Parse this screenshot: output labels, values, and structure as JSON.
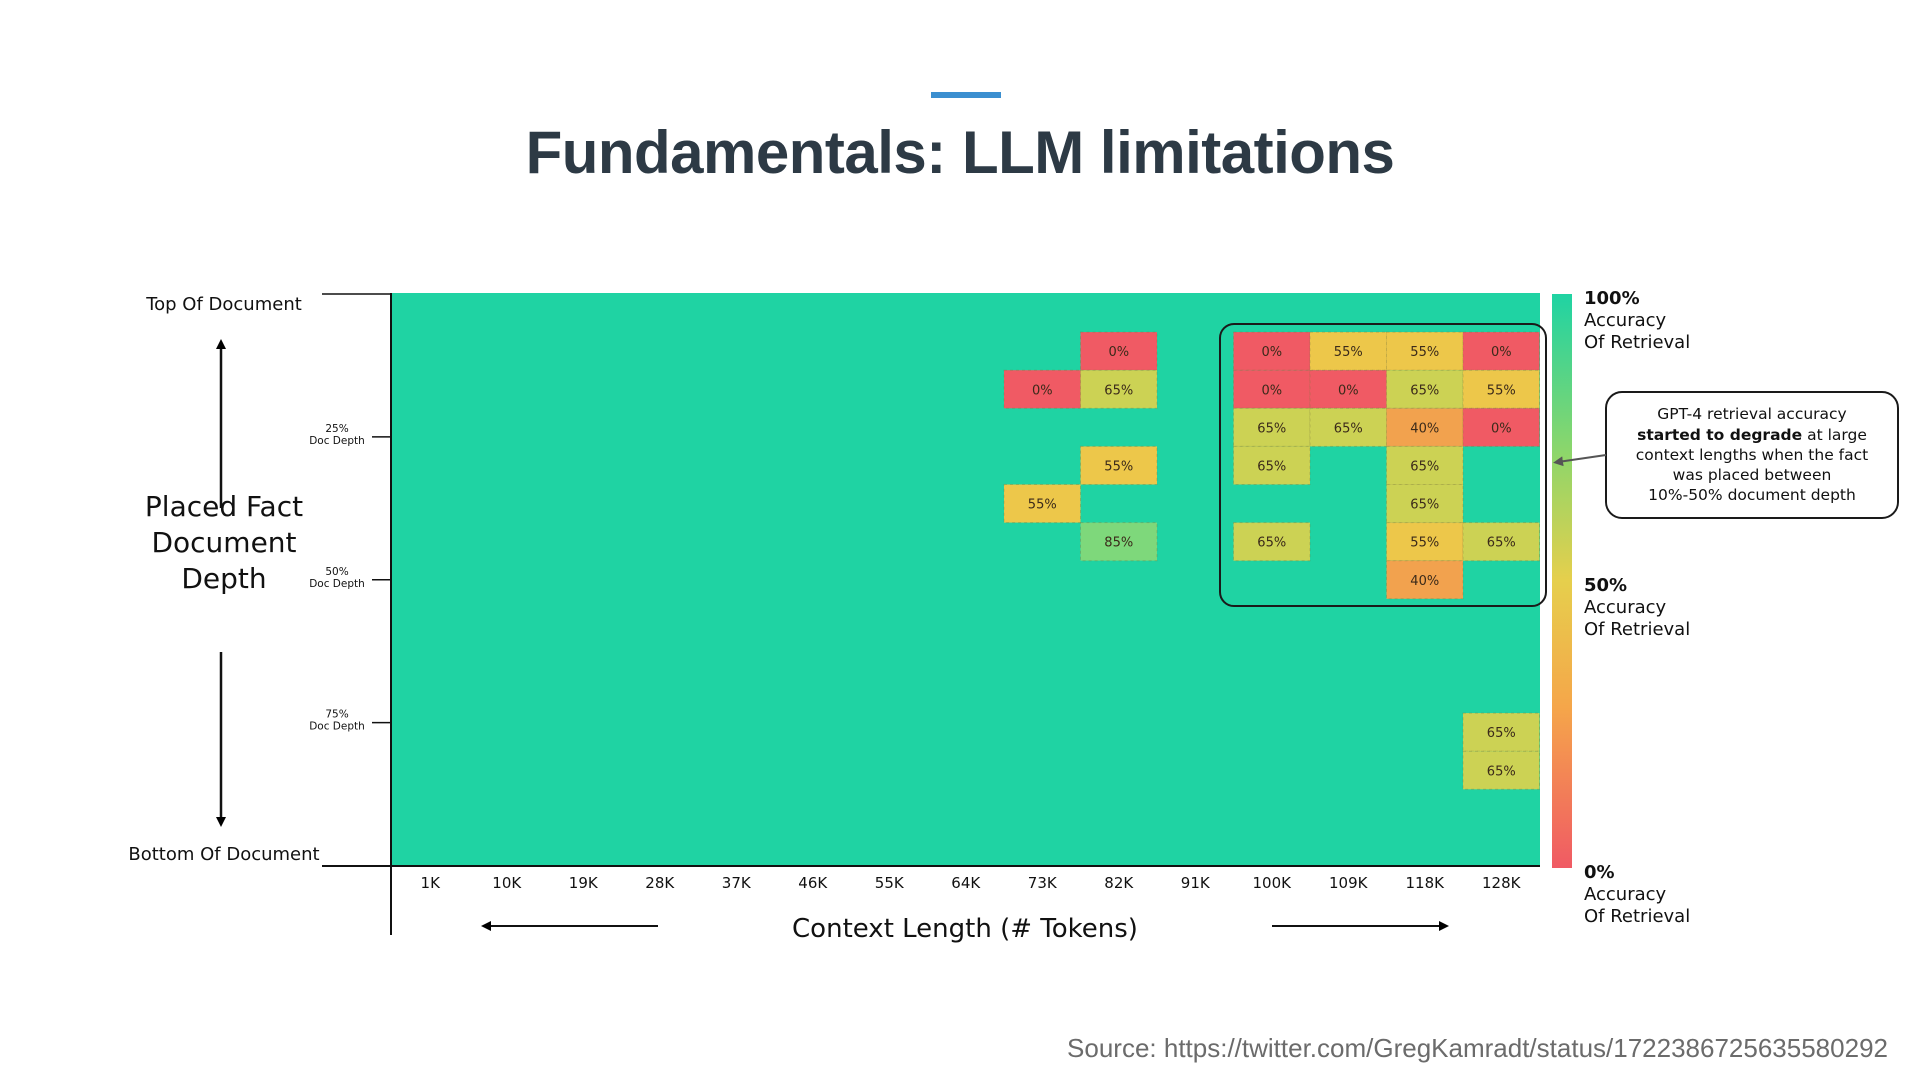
{
  "slide": {
    "title": "Fundamentals: LLM limitations",
    "source": "Source: https://twitter.com/GregKamradt/status/1722386725635580292"
  },
  "colors": {
    "accent": "#3b8fd0",
    "title": "#2d3a45",
    "heat_full": "#1fd3a3",
    "heat_zero": "#f05a64",
    "heat_mid": "#f2c04a"
  },
  "chart_data": {
    "type": "heatmap",
    "title": "",
    "xlabel": "Context Length (# Tokens)",
    "ylabel": "Placed Fact Document Depth",
    "x": [
      "1K",
      "10K",
      "19K",
      "28K",
      "37K",
      "46K",
      "55K",
      "64K",
      "73K",
      "82K",
      "91K",
      "100K",
      "109K",
      "118K",
      "128K"
    ],
    "y_rows": 15,
    "y_top_label": "Top Of Document",
    "y_bottom_label": "Bottom Of Document",
    "y_ticks": [
      {
        "label": "25% Doc Depth",
        "depth": 25
      },
      {
        "label": "50% Doc Depth",
        "depth": 50
      },
      {
        "label": "75% Doc Depth",
        "depth": 75
      }
    ],
    "default_value": 100,
    "cells": [
      {
        "row": 1,
        "col": "82K",
        "value": 0,
        "label": "0%"
      },
      {
        "row": 1,
        "col": "100K",
        "value": 0,
        "label": "0%"
      },
      {
        "row": 1,
        "col": "109K",
        "value": 55,
        "label": "55%"
      },
      {
        "row": 1,
        "col": "118K",
        "value": 55,
        "label": "55%"
      },
      {
        "row": 1,
        "col": "128K",
        "value": 0,
        "label": "0%"
      },
      {
        "row": 2,
        "col": "73K",
        "value": 0,
        "label": "0%"
      },
      {
        "row": 2,
        "col": "82K",
        "value": 65,
        "label": "65%"
      },
      {
        "row": 2,
        "col": "100K",
        "value": 0,
        "label": "0%"
      },
      {
        "row": 2,
        "col": "109K",
        "value": 0,
        "label": "0%"
      },
      {
        "row": 2,
        "col": "118K",
        "value": 65,
        "label": "65%"
      },
      {
        "row": 2,
        "col": "128K",
        "value": 55,
        "label": "55%"
      },
      {
        "row": 3,
        "col": "100K",
        "value": 65,
        "label": "65%"
      },
      {
        "row": 3,
        "col": "109K",
        "value": 65,
        "label": "65%"
      },
      {
        "row": 3,
        "col": "118K",
        "value": 40,
        "label": "40%"
      },
      {
        "row": 3,
        "col": "128K",
        "value": 0,
        "label": "0%"
      },
      {
        "row": 4,
        "col": "82K",
        "value": 55,
        "label": "55%"
      },
      {
        "row": 4,
        "col": "100K",
        "value": 65,
        "label": "65%"
      },
      {
        "row": 4,
        "col": "118K",
        "value": 65,
        "label": "65%"
      },
      {
        "row": 5,
        "col": "73K",
        "value": 55,
        "label": "55%"
      },
      {
        "row": 5,
        "col": "118K",
        "value": 65,
        "label": "65%"
      },
      {
        "row": 6,
        "col": "82K",
        "value": 85,
        "label": "85%"
      },
      {
        "row": 6,
        "col": "100K",
        "value": 65,
        "label": "65%"
      },
      {
        "row": 6,
        "col": "118K",
        "value": 55,
        "label": "55%"
      },
      {
        "row": 6,
        "col": "128K",
        "value": 65,
        "label": "65%"
      },
      {
        "row": 7,
        "col": "118K",
        "value": 40,
        "label": "40%"
      },
      {
        "row": 11,
        "col": "128K",
        "value": 65,
        "label": "65%"
      },
      {
        "row": 12,
        "col": "128K",
        "value": 65,
        "label": "65%"
      }
    ],
    "colorbar": [
      {
        "value": 100,
        "lines": [
          "100%",
          "Accuracy",
          "Of Retrieval"
        ]
      },
      {
        "value": 50,
        "lines": [
          "50%",
          "Accuracy",
          "Of Retrieval"
        ]
      },
      {
        "value": 0,
        "lines": [
          "0%",
          "Accuracy",
          "Of Retrieval"
        ]
      }
    ],
    "annotation": {
      "before": "GPT-4 retrieval accuracy",
      "bold": "started to degrade",
      "after_bold": " at large",
      "line3": "context lengths when the fact",
      "line4": "was placed between",
      "line5": "10%-50% document depth"
    },
    "grid": false,
    "legend": "right"
  }
}
